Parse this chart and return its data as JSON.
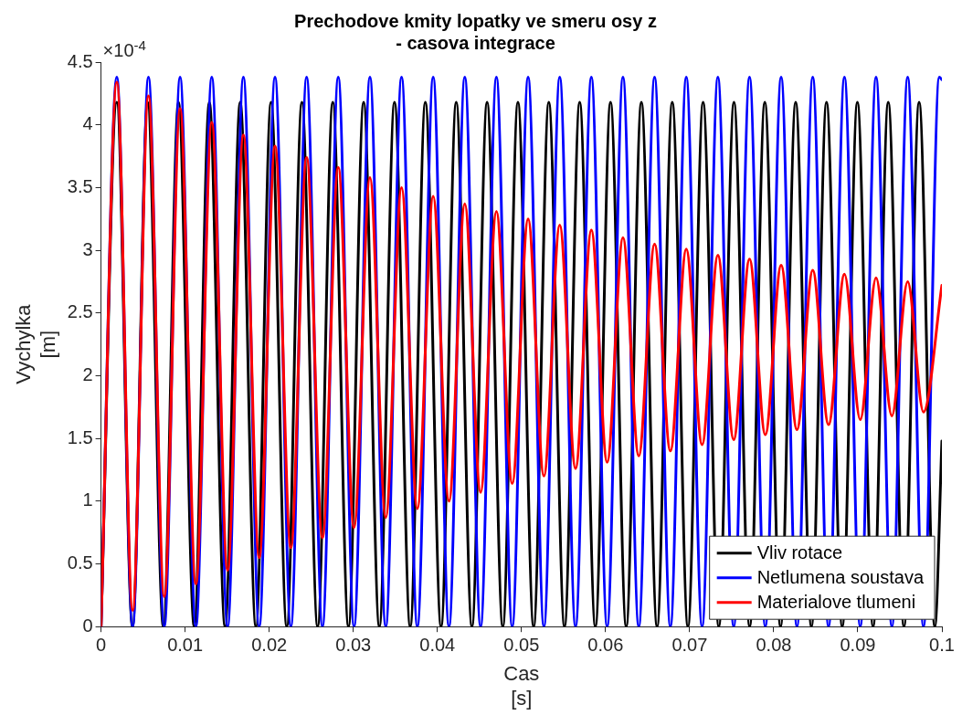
{
  "chart_data": {
    "type": "line",
    "title": "Prechodove kmity lopatky ve smeru osy z\n- casova integrace",
    "xlabel": "Cas\n[s]",
    "ylabel": "Vychylka\n[m]",
    "annotations": [
      "×10$^{-4}$"
    ],
    "xlim": [
      0,
      0.1
    ],
    "xticks": [
      0,
      0.01,
      0.02,
      0.03,
      0.04,
      0.05,
      0.06,
      0.07,
      0.08,
      0.09,
      0.1
    ],
    "ylim": [
      0,
      4.5
    ],
    "yticks": [
      0,
      0.5,
      1,
      1.5,
      2,
      2.5,
      3,
      3.5,
      4,
      4.5
    ],
    "grid": false,
    "legend": "bottom right",
    "marker": "none",
    "line_style": "solid",
    "series": [
      {
        "name": "Vliv rotace",
        "color": "#000000",
        "x": [
          0,
          0.00187,
          0.00374,
          0.00554,
          0.00741,
          0.00921,
          0.01108,
          0.01288,
          0.01475,
          0.01655,
          0.01842,
          0.02022,
          0.02209,
          0.02389,
          0.02576,
          0.02756,
          0.02943,
          0.03123,
          0.0331,
          0.0349,
          0.03677,
          0.03857,
          0.04044,
          0.04224,
          0.04411,
          0.04591,
          0.04778,
          0.04958,
          0.05145,
          0.05325,
          0.05512,
          0.05692,
          0.05879,
          0.06059,
          0.06246,
          0.06426,
          0.06613,
          0.06793,
          0.0698,
          0.0716,
          0.07347,
          0.07527,
          0.07714,
          0.07894,
          0.08081,
          0.08261,
          0.08448,
          0.08628,
          0.08815,
          0.08995,
          0.09182,
          0.09362,
          0.09549,
          0.09729,
          0.09916,
          0.1
        ],
        "values": [
          0,
          4.18,
          0,
          4.18,
          0,
          4.18,
          0,
          4.18,
          0,
          4.18,
          0,
          4.18,
          0,
          4.18,
          0,
          4.18,
          0,
          4.18,
          0,
          4.18,
          0,
          4.18,
          0,
          4.18,
          0,
          4.18,
          0,
          4.18,
          0,
          4.18,
          0,
          4.18,
          0,
          4.18,
          0,
          4.18,
          0,
          4.18,
          0,
          4.18,
          0,
          4.18,
          0,
          4.18,
          0,
          4.18,
          0,
          4.18,
          0,
          4.18,
          0,
          4.18,
          0,
          4.18,
          0,
          1.48
        ]
      },
      {
        "name": "Netlumena soustava",
        "color": "#0000ff",
        "x": [
          0,
          0.00188,
          0.00376,
          0.00564,
          0.00752,
          0.0094,
          0.01128,
          0.01317,
          0.01505,
          0.01693,
          0.01881,
          0.02069,
          0.02257,
          0.02445,
          0.02633,
          0.02821,
          0.03009,
          0.03198,
          0.03386,
          0.03574,
          0.03762,
          0.0395,
          0.04138,
          0.04326,
          0.04514,
          0.04702,
          0.0489,
          0.05079,
          0.05267,
          0.05455,
          0.05643,
          0.05831,
          0.06019,
          0.06207,
          0.06395,
          0.06583,
          0.06771,
          0.0696,
          0.07148,
          0.07336,
          0.07524,
          0.07712,
          0.079,
          0.08088,
          0.08276,
          0.08464,
          0.08652,
          0.08841,
          0.09029,
          0.09217,
          0.09405,
          0.09593,
          0.09781,
          0.09969,
          0.1
        ],
        "values": [
          0,
          4.38,
          0,
          4.38,
          0,
          4.38,
          0,
          4.38,
          0,
          4.38,
          0,
          4.38,
          0,
          4.38,
          0,
          4.38,
          0,
          4.38,
          0,
          4.38,
          0,
          4.38,
          0,
          4.38,
          0,
          4.38,
          0,
          4.38,
          0,
          4.38,
          0,
          4.38,
          0,
          4.38,
          0,
          4.38,
          0,
          4.38,
          0,
          4.38,
          0,
          4.38,
          0,
          4.38,
          0,
          4.38,
          0,
          4.38,
          0,
          4.38,
          0,
          4.38,
          0,
          4.38,
          4.36
        ]
      },
      {
        "name": "Materialove tlumeni",
        "color": "#ff0000",
        "x": [
          0,
          0.00188,
          0.00376,
          0.00564,
          0.00752,
          0.0094,
          0.01128,
          0.01317,
          0.01505,
          0.01693,
          0.01881,
          0.02069,
          0.02257,
          0.02445,
          0.02633,
          0.02821,
          0.03009,
          0.03198,
          0.03386,
          0.03574,
          0.03762,
          0.0395,
          0.04138,
          0.04326,
          0.04514,
          0.04702,
          0.0489,
          0.05079,
          0.05267,
          0.05455,
          0.05643,
          0.05831,
          0.06019,
          0.06207,
          0.06395,
          0.06583,
          0.06771,
          0.0696,
          0.07148,
          0.07336,
          0.07524,
          0.07712,
          0.079,
          0.08088,
          0.08276,
          0.08464,
          0.08652,
          0.08841,
          0.09029,
          0.09217,
          0.09405,
          0.09593,
          0.09781,
          0.1
        ],
        "values": [
          0,
          4.34,
          0.13,
          4.23,
          0.24,
          4.13,
          0.34,
          4.02,
          0.45,
          3.92,
          0.55,
          3.83,
          0.63,
          3.74,
          0.71,
          3.66,
          0.79,
          3.58,
          0.87,
          3.5,
          0.94,
          3.43,
          1.0,
          3.37,
          1.07,
          3.31,
          1.14,
          3.25,
          1.2,
          3.2,
          1.26,
          3.16,
          1.31,
          3.1,
          1.36,
          3.05,
          1.4,
          3.01,
          1.45,
          2.96,
          1.49,
          2.93,
          1.53,
          2.88,
          1.57,
          2.84,
          1.61,
          2.81,
          1.65,
          2.78,
          1.68,
          2.75,
          1.71,
          2.72
        ]
      }
    ]
  }
}
